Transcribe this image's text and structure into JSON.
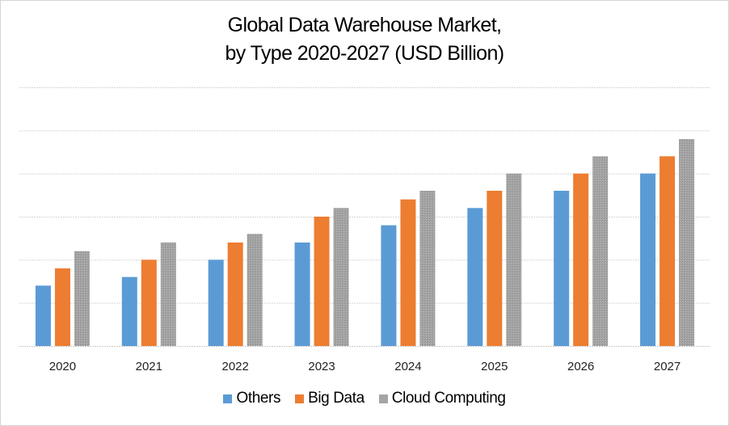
{
  "chart_data": {
    "type": "bar",
    "title_lines": [
      "Global Data Warehouse Market,",
      "by Type 2020-2027 (USD Billion)"
    ],
    "title": "Global Data Warehouse Market, by Type 2020-2027 (USD Billion)",
    "xlabel": "",
    "ylabel": "",
    "ylim": [
      0,
      6
    ],
    "y_tick_step": 1,
    "y_tick_labels_visible": false,
    "grid": true,
    "legend_position": "bottom",
    "categories": [
      "2020",
      "2021",
      "2022",
      "2023",
      "2024",
      "2025",
      "2026",
      "2027"
    ],
    "series": [
      {
        "name": "Others",
        "color": "#5b9bd5",
        "values": [
          1.4,
          1.6,
          2.0,
          2.4,
          2.8,
          3.2,
          3.6,
          4.0
        ]
      },
      {
        "name": "Big Data",
        "color": "#ed7d31",
        "values": [
          1.8,
          2.0,
          2.4,
          3.0,
          3.4,
          3.6,
          4.0,
          4.4
        ]
      },
      {
        "name": "Cloud Computing",
        "color": "#a5a5a5",
        "values": [
          2.2,
          2.4,
          2.6,
          3.2,
          3.6,
          4.0,
          4.4,
          4.8
        ]
      }
    ]
  }
}
